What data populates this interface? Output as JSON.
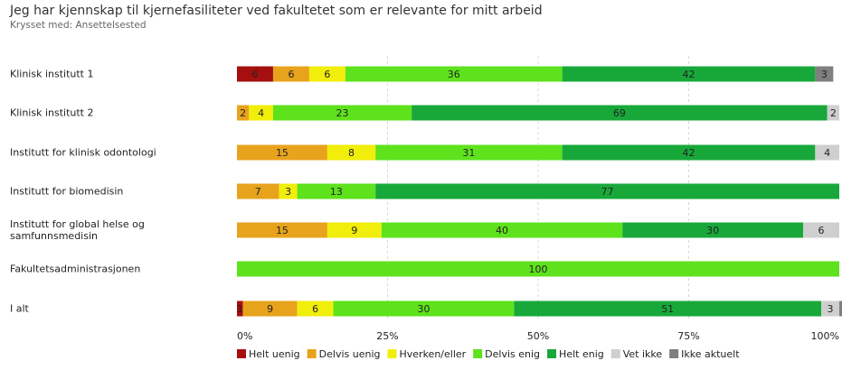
{
  "chart_data": {
    "type": "stacked-bar-horizontal",
    "title": "Jeg har kjennskap til kjernefasiliteter ved fakultetet som er relevante for mitt arbeid",
    "subtitle": "Krysset med: Ansettelsested",
    "categories": [
      "Klinisk institutt 1",
      "Klinisk institutt 2",
      "Institutt for klinisk odontologi",
      "Institutt for biomedisin",
      "Institutt for global helse og samfunnsmedisin",
      "Fakultetsadministrasjonen",
      "I alt"
    ],
    "series": [
      {
        "name": "Helt uenig",
        "color": "#a50f0f",
        "values": [
          6,
          0,
          0,
          0,
          0,
          0,
          1
        ]
      },
      {
        "name": "Delvis uenig",
        "color": "#e8a31c",
        "values": [
          6,
          2,
          15,
          7,
          15,
          0,
          9
        ]
      },
      {
        "name": "Hverken/eller",
        "color": "#f0ee0a",
        "values": [
          6,
          4,
          8,
          3,
          9,
          0,
          6
        ]
      },
      {
        "name": "Delvis enig",
        "color": "#5ee21c",
        "values": [
          36,
          23,
          31,
          13,
          40,
          100,
          30
        ]
      },
      {
        "name": "Helt enig",
        "color": "#18a83a",
        "values": [
          42,
          69,
          42,
          77,
          30,
          0,
          51
        ]
      },
      {
        "name": "Vet ikke",
        "color": "#cfcfcf",
        "values": [
          0,
          2,
          4,
          0,
          6,
          0,
          3
        ]
      },
      {
        "name": "Ikke aktuelt",
        "color": "#7f7f7f",
        "values": [
          3,
          0,
          0,
          0,
          0,
          0,
          0.5
        ]
      }
    ],
    "xlim": [
      0,
      100
    ],
    "xticks": [
      {
        "value": 0,
        "label": "0%"
      },
      {
        "value": 25,
        "label": "25%"
      },
      {
        "value": 50,
        "label": "50%"
      },
      {
        "value": 75,
        "label": "75%"
      },
      {
        "value": 100,
        "label": "100%"
      }
    ],
    "grid": true
  }
}
